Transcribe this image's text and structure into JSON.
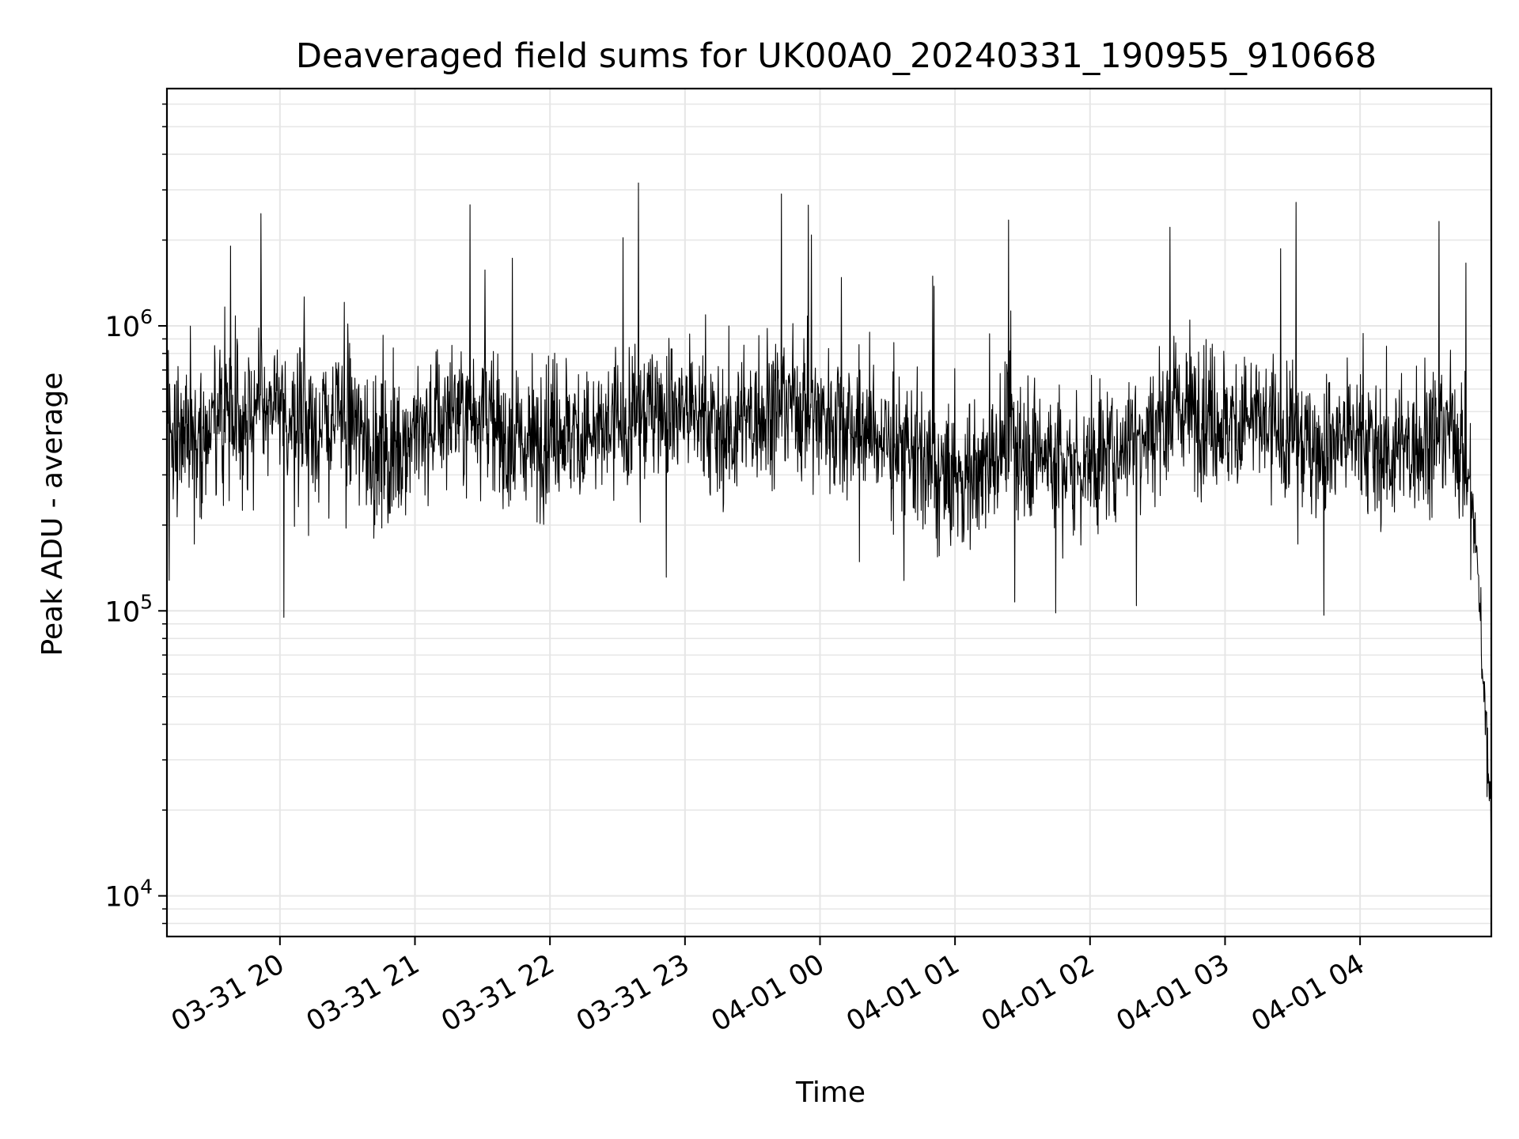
{
  "chart_data": {
    "type": "line",
    "title": "Deaveraged field sums for UK00A0_20240331_190955_910668",
    "xlabel": "Time",
    "ylabel": "Peak ADU - average",
    "x_tick_labels": [
      "03-31 20",
      "03-31 21",
      "03-31 22",
      "03-31 23",
      "04-01 00",
      "04-01 01",
      "04-01 02",
      "04-01 03",
      "04-01 04"
    ],
    "x_tick_hours": [
      20,
      21,
      22,
      23,
      24,
      25,
      26,
      27,
      28
    ],
    "xlim_hours": [
      19.163,
      28.972
    ],
    "yscale": "log",
    "ylim": [
      7200,
      6800000
    ],
    "y_ticks": [
      {
        "base": "10",
        "exp": "4",
        "value": 10000
      },
      {
        "base": "10",
        "exp": "5",
        "value": 100000
      },
      {
        "base": "10",
        "exp": "6",
        "value": 1000000
      }
    ],
    "grid": true,
    "line_color": "#000000",
    "grid_color": "#e6e6e6",
    "series": [
      {
        "x_hours": [
          19.17,
          19.3,
          19.45,
          19.6,
          19.75,
          19.9,
          20.05,
          20.2,
          20.35,
          20.5,
          20.65,
          20.8,
          20.95,
          21.1,
          21.25,
          21.4,
          21.5,
          21.6,
          21.75,
          21.9,
          22.05,
          22.2,
          22.35,
          22.5,
          22.65,
          22.8,
          22.9,
          23.05,
          23.2,
          23.35,
          23.5,
          23.65,
          23.8,
          23.95,
          24.1,
          24.25,
          24.4,
          24.55,
          24.7,
          24.85,
          25.0,
          25.15,
          25.3,
          25.4,
          25.55,
          25.7,
          25.85,
          26.0,
          26.15,
          26.3,
          26.45,
          26.6,
          26.75,
          26.9,
          27.05,
          27.2,
          27.35,
          27.5,
          27.65,
          27.8,
          27.95,
          28.1,
          28.25,
          28.4,
          28.55,
          28.7,
          28.8,
          28.87,
          28.92,
          28.95,
          28.97
        ],
        "y": [
          400000,
          450000,
          420000,
          500000,
          480000,
          520000,
          450000,
          470000,
          430000,
          500000,
          380000,
          350000,
          420000,
          450000,
          500000,
          480000,
          550000,
          420000,
          380000,
          400000,
          450000,
          420000,
          400000,
          460000,
          480000,
          550000,
          520000,
          500000,
          450000,
          420000,
          480000,
          520000,
          550000,
          500000,
          480000,
          450000,
          420000,
          380000,
          350000,
          300000,
          280000,
          320000,
          350000,
          400000,
          380000,
          350000,
          320000,
          330000,
          360000,
          420000,
          450000,
          500000,
          520000,
          480000,
          450000,
          470000,
          430000,
          420000,
          380000,
          400000,
          420000,
          380000,
          350000,
          380000,
          420000,
          450000,
          300000,
          150000,
          50000,
          30000,
          20000
        ]
      }
    ]
  }
}
